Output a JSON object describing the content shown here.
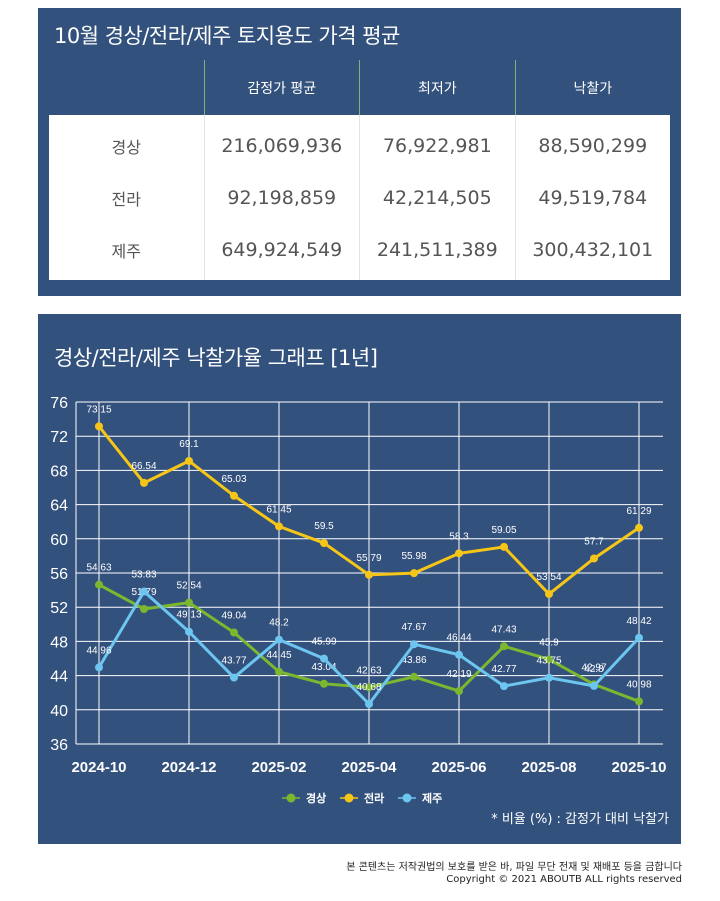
{
  "price_table": {
    "title": "10월 경상/전라/제주 토지용도 가격 평균",
    "headers": [
      "",
      "감정가 평균",
      "최저가",
      "낙찰가"
    ],
    "rows": [
      {
        "region": "경상",
        "appraisal_avg": "216,069,936",
        "min_price": "76,922,981",
        "winning_bid": "88,590,299"
      },
      {
        "region": "전라",
        "appraisal_avg": "92,198,859",
        "min_price": "42,214,505",
        "winning_bid": "49,519,784"
      },
      {
        "region": "제주",
        "appraisal_avg": "649,924,549",
        "min_price": "241,511,389",
        "winning_bid": "300,432,101"
      }
    ]
  },
  "chart_panel": {
    "title": "경상/전라/제주 낙찰가율 그래프 [1년]",
    "footnote": "* 비율 (%) : 감정가 대비 낙찰가"
  },
  "chart_data": {
    "type": "line",
    "title": "경상/전라/제주 낙찰가율 그래프 [1년]",
    "xlabel": "",
    "ylabel": "",
    "x": [
      "2024-10",
      "2024-11",
      "2024-12",
      "2025-01",
      "2025-02",
      "2025-03",
      "2025-04",
      "2025-05",
      "2025-06",
      "2025-07",
      "2025-08",
      "2025-09",
      "2025-10"
    ],
    "x_tick_labels": [
      "2024-10",
      "2024-12",
      "2025-02",
      "2025-04",
      "2025-06",
      "2025-08",
      "2025-10"
    ],
    "y_ticks": [
      36,
      40,
      44,
      48,
      52,
      56,
      60,
      64,
      68,
      72,
      76
    ],
    "ylim": [
      36,
      76
    ],
    "grid": true,
    "legend_position": "bottom-center",
    "series": [
      {
        "name": "경상",
        "color": "#7cb82f",
        "values": [
          54.63,
          51.79,
          52.54,
          49.04,
          44.45,
          43.04,
          42.63,
          43.86,
          42.19,
          47.43,
          45.9,
          42.97,
          40.98
        ]
      },
      {
        "name": "전라",
        "color": "#f5c518",
        "values": [
          73.15,
          66.54,
          69.1,
          65.03,
          61.45,
          59.5,
          55.79,
          55.98,
          58.3,
          59.05,
          53.54,
          57.7,
          61.29
        ]
      },
      {
        "name": "제주",
        "color": "#6cc6f0",
        "values": [
          44.96,
          53.83,
          49.13,
          43.77,
          48.2,
          45.99,
          40.68,
          47.67,
          46.44,
          42.77,
          43.75,
          42.8,
          48.42
        ]
      }
    ],
    "annotation": "* 비율 (%) : 감정가 대비 낙찰가"
  },
  "colors": {
    "panel_bg": "#33517d",
    "grid": "#ffffff",
    "header_divider": "#7fb27f"
  },
  "footer": {
    "notice": "본 콘텐츠는 저작권법의 보호를 받은 바, 파일 무단 전재 및 재배포 등을 금합니다",
    "copyright": "Copyright © 2021 ABOUTB ALL rights reserved"
  }
}
